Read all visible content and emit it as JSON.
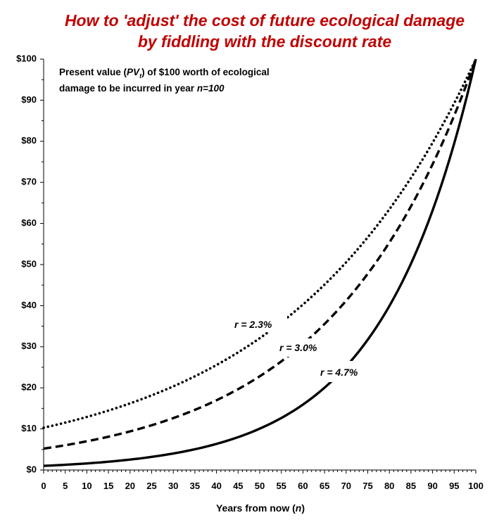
{
  "chart_data": {
    "type": "line",
    "title": [
      "How to 'adjust' the cost of future ecological damage",
      "by fiddling with the discount rate"
    ],
    "annotation": {
      "line1_pre": "Present value (",
      "line1_pv": "PV",
      "line1_sub": "t",
      "line1_post": ") of $100 worth of ecological",
      "line2_pre": "damage to be incurred in year ",
      "line2_n": "n=100"
    },
    "xlabel_text": "Years from now (",
    "xlabel_var": "n",
    "xlabel_close": ")",
    "xlim": [
      0,
      100
    ],
    "ylim": [
      0,
      100
    ],
    "x_ticks": [
      "0",
      "5",
      "10",
      "15",
      "20",
      "25",
      "30",
      "35",
      "40",
      "45",
      "50",
      "55",
      "60",
      "65",
      "70",
      "75",
      "80",
      "85",
      "90",
      "95",
      "100"
    ],
    "y_ticks": [
      "$0",
      "$10",
      "$20",
      "$30",
      "$40",
      "$50",
      "$60",
      "$70",
      "$80",
      "$90",
      "$100"
    ],
    "grid": false,
    "series": [
      {
        "name": "r = 2.3%",
        "rate": 0.023,
        "style": "dotted",
        "x": [
          0,
          10,
          20,
          30,
          40,
          50,
          60,
          70,
          80,
          90,
          100
        ],
        "values": [
          10.3,
          12.9,
          16.2,
          20.4,
          25.6,
          32.1,
          40.3,
          50.6,
          63.5,
          79.7,
          100
        ]
      },
      {
        "name": "r = 3.0%",
        "rate": 0.03,
        "style": "dashed",
        "x": [
          0,
          10,
          20,
          30,
          40,
          50,
          60,
          70,
          80,
          90,
          100
        ],
        "values": [
          5.2,
          7.0,
          9.4,
          12.6,
          16.9,
          22.8,
          30.7,
          41.2,
          55.4,
          74.4,
          100
        ]
      },
      {
        "name": "r = 4.7%",
        "rate": 0.047,
        "style": "solid",
        "x": [
          0,
          10,
          20,
          30,
          40,
          50,
          60,
          70,
          80,
          90,
          100
        ],
        "values": [
          1.0,
          1.6,
          2.5,
          3.9,
          6.2,
          9.9,
          15.7,
          25.0,
          39.7,
          63.1,
          100
        ]
      }
    ],
    "colors": {
      "title": "#c00000",
      "lines": "#000000",
      "axis": "#000000"
    }
  }
}
